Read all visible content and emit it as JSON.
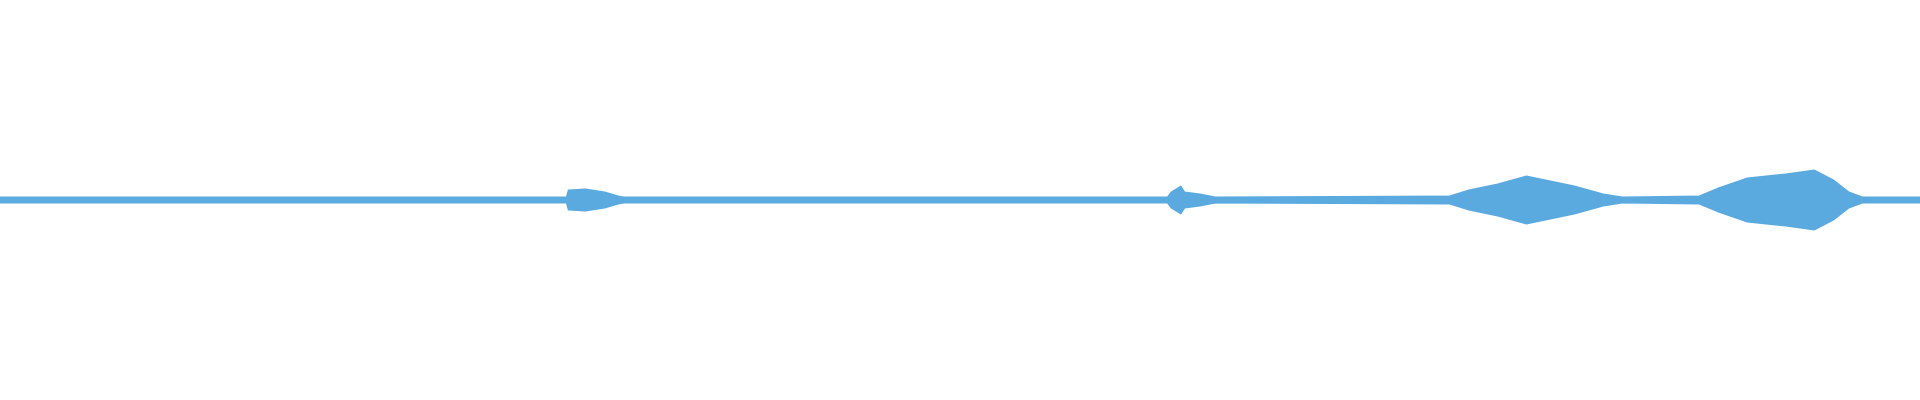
{
  "chart_data": {
    "type": "waveform",
    "color": "#5aaae0",
    "xlim": [
      0,
      100
    ],
    "ylim": [
      -1,
      1
    ],
    "x": [
      0,
      29.5,
      29.6,
      30.5,
      31.5,
      32.2,
      32.5,
      60.8,
      61.0,
      61.5,
      61.7,
      62.5,
      63.3,
      75.5,
      76.5,
      78,
      79.5,
      80.5,
      82,
      83.5,
      84.5,
      88.5,
      89.5,
      91,
      93,
      94.5,
      95.5,
      96.3,
      97,
      100
    ],
    "values": [
      0.015,
      0.015,
      0.05,
      0.055,
      0.04,
      0.02,
      0.015,
      0.015,
      0.04,
      0.07,
      0.04,
      0.03,
      0.015,
      0.02,
      0.05,
      0.08,
      0.12,
      0.1,
      0.07,
      0.03,
      0.015,
      0.02,
      0.06,
      0.11,
      0.13,
      0.15,
      0.1,
      0.04,
      0.015,
      0.015
    ]
  }
}
